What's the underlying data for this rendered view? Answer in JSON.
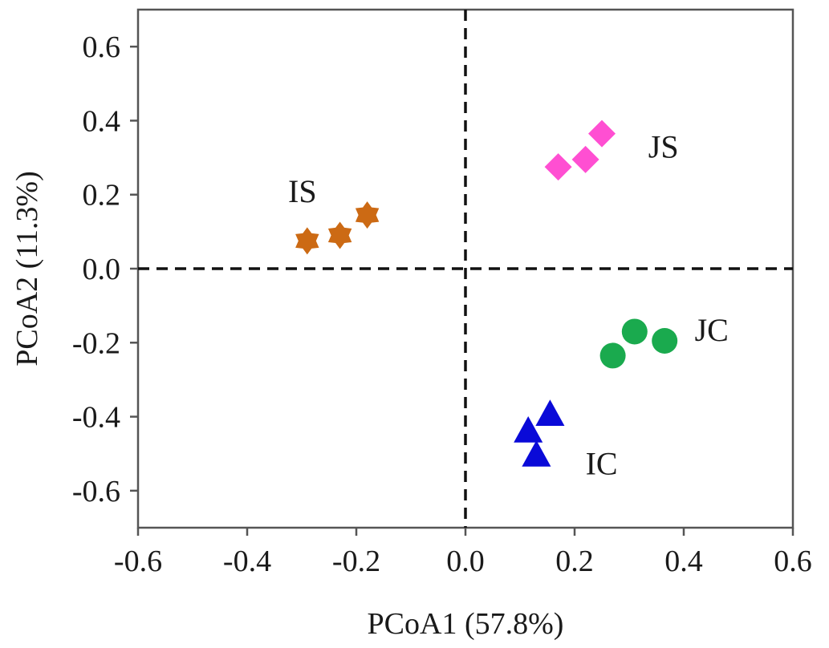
{
  "chart_data": {
    "type": "scatter",
    "title": "",
    "xlabel": "PCoA1 (57.8%)",
    "ylabel": "PCoA2 (11.3%)",
    "xlim": [
      -0.6,
      0.6
    ],
    "ylim": [
      -0.7,
      0.7
    ],
    "xticks": [
      -0.6,
      -0.4,
      -0.2,
      0.0,
      0.2,
      0.4,
      0.6
    ],
    "yticks": [
      -0.6,
      -0.4,
      -0.2,
      0.0,
      0.2,
      0.4,
      0.6
    ],
    "xtick_labels": [
      "-0.6",
      "-0.4",
      "-0.2",
      "0.0",
      "0.2",
      "0.4",
      "0.6"
    ],
    "ytick_labels": [
      "-0.6",
      "-0.4",
      "-0.2",
      "0.0",
      "0.2",
      "0.4",
      "0.6"
    ],
    "reference_lines": {
      "x": 0.0,
      "y": 0.0,
      "style": "dashed"
    },
    "series": [
      {
        "name": "JS",
        "marker": "diamond",
        "color": "#ff4fd2",
        "points": [
          [
            0.17,
            0.275
          ],
          [
            0.22,
            0.295
          ],
          [
            0.25,
            0.365
          ]
        ],
        "label_anchor": [
          0.335,
          0.33
        ]
      },
      {
        "name": "IS",
        "marker": "star",
        "color": "#cc6a14",
        "points": [
          [
            -0.29,
            0.075
          ],
          [
            -0.23,
            0.09
          ],
          [
            -0.18,
            0.145
          ]
        ],
        "label_anchor": [
          -0.325,
          0.21
        ]
      },
      {
        "name": "JC",
        "marker": "circle",
        "color": "#1aaa4e",
        "points": [
          [
            0.27,
            -0.235
          ],
          [
            0.31,
            -0.17
          ],
          [
            0.365,
            -0.195
          ]
        ],
        "label_anchor": [
          0.42,
          -0.165
        ]
      },
      {
        "name": "IC",
        "marker": "triangle",
        "color": "#0a0ad8",
        "points": [
          [
            0.115,
            -0.44
          ],
          [
            0.13,
            -0.505
          ],
          [
            0.155,
            -0.395
          ]
        ],
        "label_anchor": [
          0.22,
          -0.525
        ]
      }
    ]
  }
}
